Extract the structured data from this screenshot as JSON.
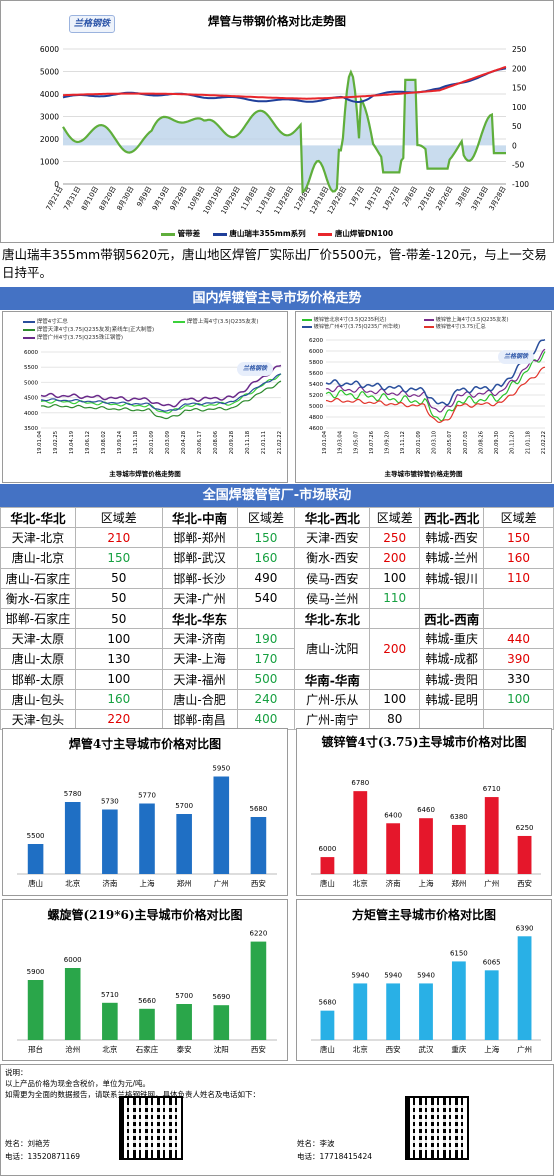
{
  "top_chart": {
    "title": "焊管与带钢价格对比走势图",
    "logo": "兰格钢铁",
    "left_ticks": [
      "6000",
      "5000",
      "4000",
      "3000",
      "2000",
      "1000",
      "0"
    ],
    "right_ticks": [
      "250",
      "200",
      "150",
      "100",
      "50",
      "0",
      "-50",
      "-100"
    ],
    "x_ticks": [
      "7月21日",
      "7月31日",
      "8月10日",
      "8月20日",
      "8月30日",
      "9月9日",
      "9月19日",
      "9月29日",
      "10月9日",
      "10月19日",
      "10月29日",
      "11月8日",
      "11月18日",
      "11月28日",
      "12月8日",
      "12月18日",
      "12月28日",
      "1月7日",
      "1月17日",
      "1月27日",
      "2月6日",
      "2月16日",
      "2月26日",
      "3月8日",
      "3月18日",
      "3月28日"
    ],
    "legend": [
      "管带差",
      "唐山瑞丰355mm系列",
      "唐山焊管DN100"
    ],
    "colors": {
      "diff": "#5fae3b",
      "strip": "#1f3f9a",
      "pipe": "#e8262b",
      "area": "#bcd3ea"
    }
  },
  "summary": "唐山瑞丰355mm带钢5620元，唐山地区焊管厂实际出厂价5500元，管-带差-120元，与上一交易日持平。",
  "section1_title": "国内焊镀管主导市场价格走势",
  "chart_weld": {
    "legend": [
      "焊管4寸汇总",
      "焊管上海4寸(3.5|Q235友发)",
      "焊管天津4寸(3.75|Q235友发|紧线车|正大制管)",
      "焊管广州4寸(3.75|Q235珠江钢管)"
    ],
    "y_ticks": [
      "6000",
      "5500",
      "5000",
      "4500",
      "4000",
      "3500"
    ],
    "x_ticks": [
      "19.01.04",
      "19.02.25",
      "19.04.19",
      "19.06.12",
      "19.08.02",
      "19.09.24",
      "19.11.18",
      "20.01.09",
      "20.03.09",
      "20.04.28",
      "20.06.17",
      "20.08.06",
      "20.09.28",
      "20.11.18",
      "21.01.11",
      "21.02.22"
    ],
    "footer": "主导城市焊管价格走势图",
    "logo": "兰格钢铁"
  },
  "chart_galv": {
    "legend": [
      "镀锌管北京4寸(3.5|Q235利达)",
      "镀锌管上海4寸(3.5|Q235友发)",
      "镀锌管广州4寸(3.75|Q235广州华岐)",
      "镀锌管4寸(3.75)汇总"
    ],
    "y_ticks": [
      "6200",
      "6000",
      "5800",
      "5600",
      "5400",
      "5200",
      "5000",
      "4800",
      "4600"
    ],
    "x_ticks": [
      "19.01.04",
      "19.03.04",
      "19.05.07",
      "19.07.26",
      "19.09.20",
      "19.11.12",
      "20.01.09",
      "20.03.10",
      "20.05.07",
      "20.07.03",
      "20.08.26",
      "20.09.30",
      "20.11.20",
      "21.01.18",
      "21.02.22"
    ],
    "footer": "主导城市镀锌管价格走势图",
    "logo": "兰格钢铁"
  },
  "section2_title": "全国焊镀管管厂-市场联动",
  "table": [
    [
      {
        "t": "华北-华北",
        "c": "h"
      },
      {
        "t": "区域差"
      },
      {
        "t": "华北-中南",
        "c": "h"
      },
      {
        "t": "区域差"
      },
      {
        "t": "华北-西北",
        "c": "h"
      },
      {
        "t": "区域差"
      },
      {
        "t": "西北-西北",
        "c": "h"
      },
      {
        "t": "区域差"
      }
    ],
    [
      {
        "t": "天津-北京"
      },
      {
        "t": "210",
        "c": "red"
      },
      {
        "t": "邯郸-郑州"
      },
      {
        "t": "150",
        "c": "grn"
      },
      {
        "t": "天津-西安"
      },
      {
        "t": "250",
        "c": "red"
      },
      {
        "t": "韩城-西安"
      },
      {
        "t": "150",
        "c": "red"
      }
    ],
    [
      {
        "t": "唐山-北京"
      },
      {
        "t": "150",
        "c": "grn"
      },
      {
        "t": "邯郸-武汉"
      },
      {
        "t": "160",
        "c": "grn"
      },
      {
        "t": "衡水-西安"
      },
      {
        "t": "200",
        "c": "red"
      },
      {
        "t": "韩城-兰州"
      },
      {
        "t": "160",
        "c": "red"
      }
    ],
    [
      {
        "t": "唐山-石家庄"
      },
      {
        "t": "50"
      },
      {
        "t": "邯郸-长沙"
      },
      {
        "t": "490"
      },
      {
        "t": "侯马-西安"
      },
      {
        "t": "100"
      },
      {
        "t": "韩城-银川"
      },
      {
        "t": "110",
        "c": "red"
      }
    ],
    [
      {
        "t": "衡水-石家庄"
      },
      {
        "t": "50"
      },
      {
        "t": "天津-广州"
      },
      {
        "t": "540"
      },
      {
        "t": "侯马-兰州"
      },
      {
        "t": "110",
        "c": "grn"
      },
      {
        "t": ""
      },
      {
        "t": ""
      }
    ],
    [
      {
        "t": "邯郸-石家庄"
      },
      {
        "t": "50"
      },
      {
        "t": "华北-华东",
        "c": "h"
      },
      {
        "t": ""
      },
      {
        "t": "华北-东北",
        "c": "h"
      },
      {
        "t": ""
      },
      {
        "t": "西北-西南",
        "c": "h"
      },
      {
        "t": ""
      }
    ],
    [
      {
        "t": "天津-太原"
      },
      {
        "t": "100"
      },
      {
        "t": "天津-济南"
      },
      {
        "t": "190",
        "c": "grn"
      },
      {
        "t": "唐山-沈阳",
        "rs": 2
      },
      {
        "t": "200",
        "c": "red",
        "rs": 2
      },
      {
        "t": "韩城-重庆"
      },
      {
        "t": "440",
        "c": "red"
      }
    ],
    [
      {
        "t": "唐山-太原"
      },
      {
        "t": "130"
      },
      {
        "t": "天津-上海"
      },
      {
        "t": "170",
        "c": "grn"
      },
      {
        "t": "韩城-成都"
      },
      {
        "t": "390",
        "c": "red"
      }
    ],
    [
      {
        "t": "邯郸-太原"
      },
      {
        "t": "100"
      },
      {
        "t": "天津-福州"
      },
      {
        "t": "500",
        "c": "grn"
      },
      {
        "t": "华南-华南",
        "c": "h"
      },
      {
        "t": ""
      },
      {
        "t": "韩城-贵阳"
      },
      {
        "t": "330"
      }
    ],
    [
      {
        "t": "唐山-包头"
      },
      {
        "t": "160",
        "c": "grn"
      },
      {
        "t": "唐山-合肥"
      },
      {
        "t": "240",
        "c": "grn"
      },
      {
        "t": "广州-乐从"
      },
      {
        "t": "100"
      },
      {
        "t": "韩城-昆明"
      },
      {
        "t": "100",
        "c": "grn"
      }
    ],
    [
      {
        "t": "天津-包头"
      },
      {
        "t": "220",
        "c": "red"
      },
      {
        "t": "邯郸-南昌"
      },
      {
        "t": "400",
        "c": "grn"
      },
      {
        "t": "广州-南宁"
      },
      {
        "t": "80"
      },
      {
        "t": ""
      },
      {
        "t": ""
      }
    ]
  ],
  "chart_data": [
    {
      "type": "bar",
      "title": "焊管4寸主导城市价格对比图",
      "categories": [
        "唐山",
        "北京",
        "济南",
        "上海",
        "郑州",
        "广州",
        "西安"
      ],
      "values": [
        5500,
        5780,
        5730,
        5770,
        5700,
        5950,
        5680
      ],
      "ylim": [
        5300,
        6000
      ],
      "color": "#1f6fc4"
    },
    {
      "type": "bar",
      "title": "镀锌管4寸(3.75)主导城市价格对比图",
      "categories": [
        "唐山",
        "北京",
        "济南",
        "上海",
        "郑州",
        "广州",
        "西安"
      ],
      "values": [
        6000,
        6780,
        6400,
        6460,
        6380,
        6710,
        6250
      ],
      "ylim": [
        5800,
        6900
      ],
      "color": "#e5172b"
    },
    {
      "type": "bar",
      "title": "螺旋管(219*6)主导城市价格对比图",
      "categories": [
        "邢台",
        "沧州",
        "北京",
        "石家庄",
        "泰安",
        "沈阳",
        "西安"
      ],
      "values": [
        5900,
        6000,
        5710,
        5660,
        5700,
        5690,
        6220
      ],
      "ylim": [
        5400,
        6300
      ],
      "color": "#2aa64a"
    },
    {
      "type": "bar",
      "title": "方矩管主导城市价格对比图",
      "categories": [
        "唐山",
        "北京",
        "西安",
        "武汉",
        "重庆",
        "上海",
        "广州"
      ],
      "values": [
        5680,
        5940,
        5940,
        5940,
        6150,
        6065,
        6390
      ],
      "ylim": [
        5400,
        6450
      ],
      "color": "#29b0e6"
    }
  ],
  "footer": {
    "note_label": "说明：",
    "line1": "以上产品价格为现金含税价，单位为元/吨。",
    "line2": "如需更为全面的数据报告，请联系兰格钢铁网，具体负责人姓名及电话如下：",
    "p1_name": "姓名：刘艳芳",
    "p1_tel": "电话：13520871169",
    "p2_name": "姓名：李波",
    "p2_tel": "电话：17718415424"
  }
}
